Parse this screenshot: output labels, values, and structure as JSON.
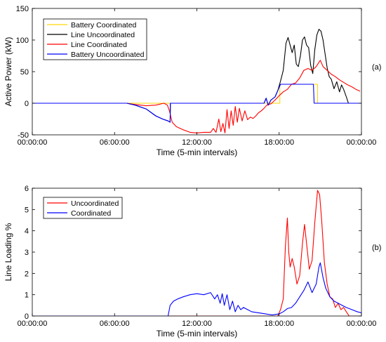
{
  "chart_data": [
    {
      "type": "line",
      "panel_label": "(a)",
      "xlabel": "Time (5-min intervals)",
      "ylabel": "Active Power (kW)",
      "xlim": [
        0,
        24
      ],
      "ylim": [
        -50,
        150
      ],
      "x_ticks": [
        0,
        6,
        12,
        18,
        24
      ],
      "x_tick_labels": [
        "00:00:00",
        "06:00:00",
        "12:00:00",
        "18:00:00",
        "00:00:00"
      ],
      "y_ticks": [
        -50,
        0,
        50,
        100,
        150
      ],
      "y_tick_labels": [
        "-50",
        "0",
        "50",
        "100",
        "150"
      ],
      "grid": false,
      "legend_position": "top-left",
      "series": [
        {
          "name": "Battery Coordinated",
          "color": "#ffd700",
          "points": [
            [
              0,
              0
            ],
            [
              18.05,
              0
            ],
            [
              18.05,
              30
            ],
            [
              20.8,
              30
            ],
            [
              20.8,
              0
            ],
            [
              24,
              0
            ]
          ]
        },
        {
          "name": "Line Uncoordinated",
          "color": "#000000",
          "points": [
            [
              0,
              0
            ],
            [
              6.9,
              0
            ],
            [
              7.5,
              -3
            ],
            [
              8.3,
              -9
            ],
            [
              9,
              -20
            ],
            [
              9.5,
              -25
            ],
            [
              9.9,
              -28
            ],
            [
              10.05,
              -30
            ],
            [
              10.07,
              0
            ],
            [
              16.9,
              0
            ],
            [
              17.05,
              8
            ],
            [
              17.2,
              -3
            ],
            [
              17.4,
              5
            ],
            [
              17.7,
              10
            ],
            [
              17.9,
              20
            ],
            [
              18.1,
              35
            ],
            [
              18.3,
              52
            ],
            [
              18.5,
              95
            ],
            [
              18.65,
              104
            ],
            [
              18.8,
              92
            ],
            [
              18.95,
              80
            ],
            [
              19.1,
              92
            ],
            [
              19.25,
              62
            ],
            [
              19.4,
              58
            ],
            [
              19.55,
              75
            ],
            [
              19.7,
              100
            ],
            [
              19.85,
              105
            ],
            [
              20,
              92
            ],
            [
              20.15,
              88
            ],
            [
              20.3,
              60
            ],
            [
              20.45,
              47
            ],
            [
              20.6,
              85
            ],
            [
              20.75,
              108
            ],
            [
              20.9,
              117
            ],
            [
              21.05,
              114
            ],
            [
              21.2,
              100
            ],
            [
              21.35,
              78
            ],
            [
              21.5,
              56
            ],
            [
              21.65,
              42
            ],
            [
              21.8,
              38
            ],
            [
              22,
              23
            ],
            [
              22.2,
              34
            ],
            [
              22.4,
              18
            ],
            [
              22.55,
              29
            ],
            [
              22.7,
              22
            ],
            [
              22.9,
              10
            ],
            [
              23.05,
              0
            ],
            [
              24,
              0
            ]
          ]
        },
        {
          "name": "Line Coordinated",
          "color": "#ff0000",
          "points": [
            [
              0,
              0
            ],
            [
              6.9,
              0
            ],
            [
              7.5,
              -2
            ],
            [
              8.3,
              -4
            ],
            [
              9,
              -3
            ],
            [
              9.6,
              0
            ],
            [
              9.85,
              -3
            ],
            [
              10,
              -12
            ],
            [
              10.2,
              -30
            ],
            [
              10.5,
              -37
            ],
            [
              11,
              -42
            ],
            [
              11.5,
              -46
            ],
            [
              12,
              -47
            ],
            [
              12.5,
              -46
            ],
            [
              13,
              -46
            ],
            [
              13.2,
              -40
            ],
            [
              13.4,
              -46
            ],
            [
              13.6,
              -25
            ],
            [
              13.75,
              -45
            ],
            [
              13.9,
              -32
            ],
            [
              14.05,
              -47
            ],
            [
              14.2,
              -10
            ],
            [
              14.35,
              -40
            ],
            [
              14.5,
              -12
            ],
            [
              14.65,
              -35
            ],
            [
              14.8,
              -5
            ],
            [
              14.95,
              -30
            ],
            [
              15.1,
              -8
            ],
            [
              15.3,
              -28
            ],
            [
              15.5,
              -12
            ],
            [
              15.7,
              -26
            ],
            [
              15.9,
              -22
            ],
            [
              16.1,
              -24
            ],
            [
              16.3,
              -20
            ],
            [
              16.5,
              -15
            ],
            [
              16.7,
              -12
            ],
            [
              16.9,
              -8
            ],
            [
              17.1,
              -3
            ],
            [
              17.4,
              -1
            ],
            [
              17.7,
              5
            ],
            [
              18,
              12
            ],
            [
              18.3,
              18
            ],
            [
              18.6,
              22
            ],
            [
              18.9,
              30
            ],
            [
              19.2,
              32
            ],
            [
              19.5,
              40
            ],
            [
              19.8,
              52
            ],
            [
              20.1,
              55
            ],
            [
              20.4,
              52
            ],
            [
              20.7,
              58
            ],
            [
              21,
              68
            ],
            [
              21.2,
              58
            ],
            [
              21.5,
              52
            ],
            [
              21.8,
              46
            ],
            [
              22.1,
              42
            ],
            [
              22.4,
              37
            ],
            [
              22.7,
              33
            ],
            [
              23,
              29
            ],
            [
              23.3,
              26
            ],
            [
              23.6,
              22
            ],
            [
              23.9,
              19
            ]
          ]
        },
        {
          "name": "Battery Uncoordinated",
          "color": "#0000ff",
          "points": [
            [
              0,
              0
            ],
            [
              6.9,
              0
            ],
            [
              7.5,
              -3
            ],
            [
              8.3,
              -9
            ],
            [
              9,
              -20
            ],
            [
              9.5,
              -25
            ],
            [
              9.9,
              -28
            ],
            [
              10.05,
              -30
            ],
            [
              10.07,
              0
            ],
            [
              16.9,
              0
            ],
            [
              17.05,
              8
            ],
            [
              17.2,
              -3
            ],
            [
              17.4,
              5
            ],
            [
              17.7,
              10
            ],
            [
              17.9,
              20
            ],
            [
              18.1,
              30
            ],
            [
              20.5,
              30
            ],
            [
              20.55,
              0
            ],
            [
              24,
              0
            ]
          ]
        }
      ]
    },
    {
      "type": "line",
      "panel_label": "(b)",
      "xlabel": "Time (5-min intervals)",
      "ylabel": "Line Loading %",
      "xlim": [
        0,
        24
      ],
      "ylim": [
        0,
        6
      ],
      "x_ticks": [
        0,
        6,
        12,
        18,
        24
      ],
      "x_tick_labels": [
        "00:00:00",
        "06:00:00",
        "12:00:00",
        "18:00:00",
        "00:00:00"
      ],
      "y_ticks": [
        0,
        1,
        2,
        3,
        4,
        5,
        6
      ],
      "y_tick_labels": [
        "0",
        "1",
        "2",
        "3",
        "4",
        "5",
        "6"
      ],
      "grid": false,
      "legend_position": "top-left",
      "series": [
        {
          "name": "Uncoordinated",
          "color": "#ff0000",
          "points": [
            [
              0,
              0
            ],
            [
              17.9,
              0
            ],
            [
              18.1,
              0.3
            ],
            [
              18.3,
              0.8
            ],
            [
              18.45,
              3.2
            ],
            [
              18.6,
              4.6
            ],
            [
              18.7,
              3
            ],
            [
              18.8,
              2.3
            ],
            [
              18.95,
              2.7
            ],
            [
              19.1,
              2.3
            ],
            [
              19.3,
              1.5
            ],
            [
              19.5,
              1.9
            ],
            [
              19.7,
              3.4
            ],
            [
              19.85,
              4.3
            ],
            [
              20,
              3.4
            ],
            [
              20.2,
              2.2
            ],
            [
              20.4,
              2.6
            ],
            [
              20.6,
              4.4
            ],
            [
              20.8,
              5.9
            ],
            [
              20.95,
              5.7
            ],
            [
              21.1,
              4.5
            ],
            [
              21.3,
              2.5
            ],
            [
              21.5,
              1.5
            ],
            [
              21.7,
              0.9
            ],
            [
              21.9,
              0.8
            ],
            [
              22.1,
              0.4
            ],
            [
              22.3,
              0.6
            ],
            [
              22.5,
              0.3
            ],
            [
              22.7,
              0.4
            ],
            [
              22.9,
              0.2
            ],
            [
              23.1,
              0
            ],
            [
              24,
              0
            ]
          ]
        },
        {
          "name": "Coordinated",
          "color": "#0000ff",
          "points": [
            [
              0,
              0
            ],
            [
              9.9,
              0
            ],
            [
              10.05,
              0.5
            ],
            [
              10.3,
              0.7
            ],
            [
              10.6,
              0.8
            ],
            [
              11,
              0.9
            ],
            [
              11.5,
              1
            ],
            [
              12,
              1.05
            ],
            [
              12.5,
              1
            ],
            [
              13,
              1.1
            ],
            [
              13.3,
              0.8
            ],
            [
              13.5,
              1
            ],
            [
              13.7,
              0.6
            ],
            [
              13.85,
              1.05
            ],
            [
              14,
              0.5
            ],
            [
              14.2,
              1
            ],
            [
              14.4,
              0.3
            ],
            [
              14.6,
              0.7
            ],
            [
              14.8,
              0.2
            ],
            [
              15,
              0.5
            ],
            [
              15.2,
              0.3
            ],
            [
              15.4,
              0.4
            ],
            [
              15.7,
              0.3
            ],
            [
              16,
              0.2
            ],
            [
              16.5,
              0.15
            ],
            [
              17,
              0.1
            ],
            [
              17.5,
              0.05
            ],
            [
              18,
              0.1
            ],
            [
              18.3,
              0.2
            ],
            [
              18.6,
              0.35
            ],
            [
              18.9,
              0.4
            ],
            [
              19.2,
              0.6
            ],
            [
              19.5,
              0.9
            ],
            [
              19.8,
              1.2
            ],
            [
              20.1,
              1.6
            ],
            [
              20.4,
              1.1
            ],
            [
              20.7,
              1.5
            ],
            [
              20.9,
              2.3
            ],
            [
              21,
              2.5
            ],
            [
              21.2,
              1.8
            ],
            [
              21.4,
              1.3
            ],
            [
              21.7,
              0.9
            ],
            [
              22,
              0.7
            ],
            [
              22.3,
              0.6
            ],
            [
              22.6,
              0.5
            ],
            [
              22.9,
              0.4
            ],
            [
              23.3,
              0.3
            ],
            [
              23.7,
              0.2
            ],
            [
              24,
              0.15
            ]
          ]
        }
      ]
    }
  ]
}
